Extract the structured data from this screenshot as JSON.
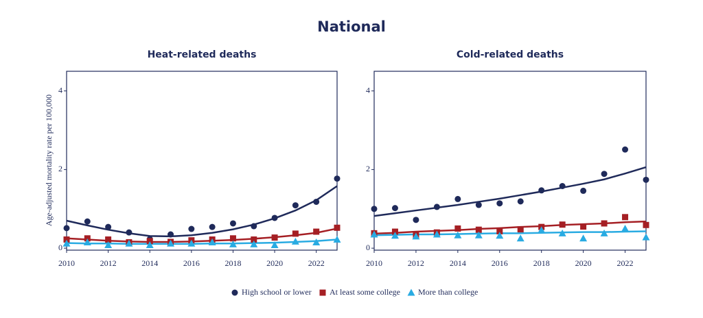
{
  "title": "National",
  "y_label": "Age-adjusted mortality rate per 100,000",
  "chart_data": [
    {
      "type": "scatter",
      "title": "Heat-related deaths",
      "x": [
        2010,
        2011,
        2012,
        2013,
        2014,
        2015,
        2016,
        2017,
        2018,
        2019,
        2020,
        2021,
        2022,
        2023
      ],
      "xlim": [
        2010,
        2023
      ],
      "xticks": [
        2010,
        2012,
        2014,
        2016,
        2018,
        2020,
        2022
      ],
      "ylim": [
        -0.05,
        4.5
      ],
      "yticks": [
        0,
        2,
        4
      ],
      "series": [
        {
          "name": "High school or lower",
          "color": "#1f2a5a",
          "marker": "circle",
          "values": [
            0.51,
            0.68,
            0.54,
            0.4,
            0.23,
            0.35,
            0.49,
            0.54,
            0.63,
            0.56,
            0.77,
            1.09,
            1.18,
            1.77
          ],
          "trend": [
            0.7,
            0.58,
            0.47,
            0.38,
            0.31,
            0.3,
            0.33,
            0.39,
            0.48,
            0.6,
            0.76,
            0.96,
            1.22,
            1.58
          ]
        },
        {
          "name": "At least some college",
          "color": "#a51f24",
          "marker": "square",
          "values": [
            0.22,
            0.25,
            0.22,
            0.15,
            0.18,
            0.16,
            0.2,
            0.22,
            0.25,
            0.22,
            0.27,
            0.37,
            0.42,
            0.52
          ],
          "trend": [
            0.25,
            0.22,
            0.19,
            0.17,
            0.16,
            0.16,
            0.17,
            0.19,
            0.21,
            0.24,
            0.28,
            0.33,
            0.39,
            0.5
          ]
        },
        {
          "name": "More than college",
          "color": "#29abe2",
          "marker": "triangle",
          "values": [
            0.12,
            0.15,
            0.08,
            0.12,
            0.08,
            0.12,
            0.12,
            0.15,
            0.1,
            0.1,
            0.08,
            0.17,
            0.15,
            0.22
          ],
          "trend": [
            0.13,
            0.12,
            0.12,
            0.11,
            0.11,
            0.11,
            0.11,
            0.12,
            0.12,
            0.13,
            0.14,
            0.16,
            0.18,
            0.22
          ]
        }
      ]
    },
    {
      "type": "scatter",
      "title": "Cold-related deaths",
      "x": [
        2010,
        2011,
        2012,
        2013,
        2014,
        2015,
        2016,
        2017,
        2018,
        2019,
        2020,
        2021,
        2022,
        2023
      ],
      "xlim": [
        2010,
        2023
      ],
      "xticks": [
        2010,
        2012,
        2014,
        2016,
        2018,
        2020,
        2022
      ],
      "ylim": [
        -0.05,
        4.5
      ],
      "yticks": [
        0,
        2,
        4
      ],
      "series": [
        {
          "name": "High school or lower",
          "color": "#1f2a5a",
          "marker": "circle",
          "values": [
            1.0,
            1.02,
            0.72,
            1.05,
            1.25,
            1.1,
            1.14,
            1.19,
            1.47,
            1.58,
            1.46,
            1.89,
            2.51,
            1.74
          ],
          "trend": [
            0.82,
            0.89,
            0.96,
            1.03,
            1.1,
            1.18,
            1.26,
            1.35,
            1.44,
            1.54,
            1.64,
            1.75,
            1.9,
            2.06
          ]
        },
        {
          "name": "At least some college",
          "color": "#a51f24",
          "marker": "square",
          "values": [
            0.38,
            0.42,
            0.33,
            0.4,
            0.5,
            0.47,
            0.43,
            0.48,
            0.54,
            0.6,
            0.55,
            0.63,
            0.79,
            0.59
          ],
          "trend": [
            0.37,
            0.39,
            0.42,
            0.44,
            0.46,
            0.49,
            0.51,
            0.54,
            0.56,
            0.59,
            0.61,
            0.63,
            0.66,
            0.68
          ]
        },
        {
          "name": "More than college",
          "color": "#29abe2",
          "marker": "triangle",
          "values": [
            0.35,
            0.32,
            0.3,
            0.35,
            0.33,
            0.33,
            0.32,
            0.25,
            0.46,
            0.38,
            0.25,
            0.38,
            0.5,
            0.28
          ],
          "trend": [
            0.33,
            0.34,
            0.35,
            0.35,
            0.36,
            0.37,
            0.38,
            0.38,
            0.39,
            0.4,
            0.41,
            0.41,
            0.42,
            0.43
          ]
        }
      ]
    }
  ]
}
